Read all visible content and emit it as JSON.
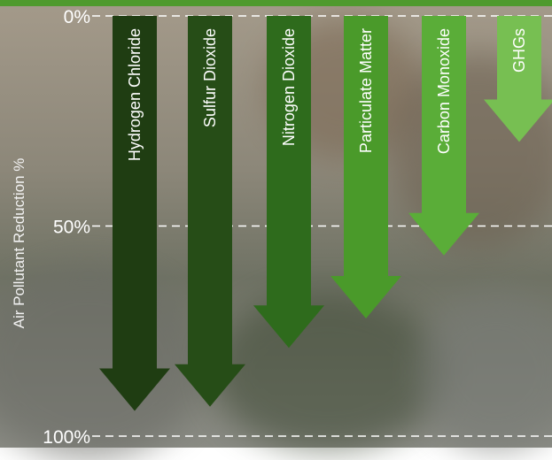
{
  "chart_data": {
    "type": "bar",
    "orientation": "downward-arrows",
    "title": "",
    "xlabel": "",
    "ylabel": "Air Pollutant Reduction %",
    "ylim": [
      0,
      100
    ],
    "yticks": [
      {
        "value": 0,
        "label": "0%"
      },
      {
        "value": 50,
        "label": "50%"
      },
      {
        "value": 100,
        "label": "100%"
      }
    ],
    "grid": "dashed",
    "categories": [
      "Hydrogen Chloride",
      "Sulfur Dioxide",
      "Nitrogen Dioxide",
      "Particulate Matter",
      "Carbon Monoxide",
      "GHGs"
    ],
    "values": [
      94,
      93,
      79,
      72,
      57,
      30
    ],
    "colors": [
      "#1f3d12",
      "#264d17",
      "#2e6b1c",
      "#4a9a2a",
      "#5aad38",
      "#77bf52"
    ]
  },
  "colors": {
    "top_bar": "#4f9a2e"
  }
}
